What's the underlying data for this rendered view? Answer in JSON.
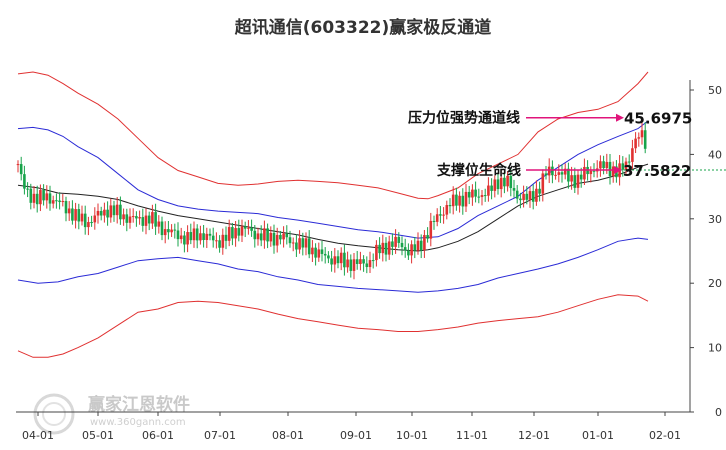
{
  "chart_data": {
    "type": "line",
    "title": "超讯通信(603322)赢家极反通道",
    "ylim": [
      0,
      50
    ],
    "y_ticks": [
      "0",
      "10",
      "20",
      "30",
      "40",
      "50"
    ],
    "x_ticks": [
      "04-01",
      "05-01",
      "06-01",
      "07-01",
      "08-01",
      "09-01",
      "10-01",
      "11-01",
      "12-01",
      "01-01",
      "02-01"
    ],
    "grid": false,
    "legend": "none",
    "annotations": {
      "pressure": {
        "label": "压力位强势通道线",
        "value": "45.6975",
        "y": 45.6975
      },
      "support": {
        "label": "支撑位生命线",
        "value": "37.5822",
        "y": 37.5822
      }
    },
    "series": [
      {
        "role": "outer-upper",
        "color": "#e03131",
        "points": [
          [
            0,
            52.5
          ],
          [
            15,
            52.8
          ],
          [
            30,
            52.3
          ],
          [
            45,
            51.0
          ],
          [
            60,
            49.5
          ],
          [
            80,
            47.8
          ],
          [
            100,
            45.5
          ],
          [
            120,
            42.5
          ],
          [
            140,
            39.5
          ],
          [
            160,
            37.5
          ],
          [
            180,
            36.5
          ],
          [
            200,
            35.5
          ],
          [
            220,
            35.2
          ],
          [
            240,
            35.4
          ],
          [
            260,
            35.8
          ],
          [
            280,
            36.0
          ],
          [
            300,
            35.8
          ],
          [
            320,
            35.6
          ],
          [
            340,
            35.2
          ],
          [
            360,
            34.8
          ],
          [
            380,
            34.0
          ],
          [
            400,
            33.2
          ],
          [
            410,
            33.1
          ],
          [
            420,
            33.6
          ],
          [
            440,
            34.8
          ],
          [
            460,
            37.0
          ],
          [
            480,
            38.5
          ],
          [
            500,
            40.0
          ],
          [
            520,
            43.5
          ],
          [
            540,
            45.5
          ],
          [
            560,
            46.5
          ],
          [
            580,
            47.0
          ],
          [
            600,
            48.2
          ],
          [
            620,
            51.0
          ],
          [
            630,
            52.8
          ]
        ]
      },
      {
        "role": "inner-upper",
        "color": "#2b2bd6",
        "points": [
          [
            0,
            44.0
          ],
          [
            15,
            44.2
          ],
          [
            30,
            43.8
          ],
          [
            45,
            42.8
          ],
          [
            60,
            41.2
          ],
          [
            80,
            39.5
          ],
          [
            100,
            37.0
          ],
          [
            120,
            34.5
          ],
          [
            140,
            33.0
          ],
          [
            160,
            32.0
          ],
          [
            180,
            31.5
          ],
          [
            200,
            31.2
          ],
          [
            220,
            31.0
          ],
          [
            240,
            30.8
          ],
          [
            260,
            30.2
          ],
          [
            280,
            29.8
          ],
          [
            300,
            29.3
          ],
          [
            320,
            28.8
          ],
          [
            340,
            28.3
          ],
          [
            360,
            28.0
          ],
          [
            380,
            27.5
          ],
          [
            400,
            27.0
          ],
          [
            420,
            27.2
          ],
          [
            440,
            28.5
          ],
          [
            460,
            30.5
          ],
          [
            480,
            32.0
          ],
          [
            500,
            33.5
          ],
          [
            520,
            36.0
          ],
          [
            540,
            38.0
          ],
          [
            560,
            40.0
          ],
          [
            580,
            41.5
          ],
          [
            600,
            42.8
          ],
          [
            620,
            44.0
          ],
          [
            630,
            45.2
          ]
        ]
      },
      {
        "role": "midline",
        "color": "#222222",
        "points": [
          [
            0,
            35.2
          ],
          [
            20,
            34.8
          ],
          [
            40,
            34.0
          ],
          [
            60,
            33.8
          ],
          [
            80,
            33.5
          ],
          [
            100,
            33.0
          ],
          [
            120,
            32.0
          ],
          [
            140,
            31.2
          ],
          [
            160,
            30.5
          ],
          [
            180,
            30.0
          ],
          [
            200,
            29.5
          ],
          [
            220,
            29.0
          ],
          [
            240,
            28.5
          ],
          [
            260,
            28.0
          ],
          [
            280,
            27.5
          ],
          [
            300,
            26.8
          ],
          [
            320,
            26.2
          ],
          [
            340,
            25.8
          ],
          [
            360,
            25.5
          ],
          [
            380,
            25.2
          ],
          [
            400,
            25.0
          ],
          [
            410,
            25.2
          ],
          [
            420,
            25.5
          ],
          [
            440,
            26.5
          ],
          [
            460,
            28.0
          ],
          [
            480,
            30.0
          ],
          [
            500,
            32.0
          ],
          [
            520,
            33.5
          ],
          [
            540,
            34.5
          ],
          [
            560,
            35.5
          ],
          [
            580,
            36.0
          ],
          [
            600,
            36.8
          ],
          [
            620,
            38.0
          ],
          [
            630,
            38.5
          ]
        ]
      },
      {
        "role": "inner-lower",
        "color": "#2b2bd6",
        "points": [
          [
            0,
            20.5
          ],
          [
            20,
            20.0
          ],
          [
            40,
            20.2
          ],
          [
            60,
            21.0
          ],
          [
            80,
            21.5
          ],
          [
            100,
            22.5
          ],
          [
            120,
            23.5
          ],
          [
            140,
            23.8
          ],
          [
            160,
            24.0
          ],
          [
            180,
            23.5
          ],
          [
            200,
            23.0
          ],
          [
            220,
            22.2
          ],
          [
            240,
            21.8
          ],
          [
            260,
            21.0
          ],
          [
            280,
            20.5
          ],
          [
            300,
            19.8
          ],
          [
            320,
            19.5
          ],
          [
            340,
            19.2
          ],
          [
            360,
            19.0
          ],
          [
            380,
            18.8
          ],
          [
            400,
            18.6
          ],
          [
            420,
            18.8
          ],
          [
            440,
            19.2
          ],
          [
            460,
            19.8
          ],
          [
            480,
            20.8
          ],
          [
            500,
            21.5
          ],
          [
            520,
            22.2
          ],
          [
            540,
            23.0
          ],
          [
            560,
            24.0
          ],
          [
            580,
            25.2
          ],
          [
            600,
            26.5
          ],
          [
            620,
            27.0
          ],
          [
            630,
            26.8
          ]
        ]
      },
      {
        "role": "outer-lower",
        "color": "#e03131",
        "points": [
          [
            0,
            9.5
          ],
          [
            15,
            8.5
          ],
          [
            30,
            8.5
          ],
          [
            45,
            9.0
          ],
          [
            60,
            10.0
          ],
          [
            80,
            11.5
          ],
          [
            100,
            13.5
          ],
          [
            120,
            15.5
          ],
          [
            140,
            16.0
          ],
          [
            160,
            17.0
          ],
          [
            180,
            17.2
          ],
          [
            200,
            17.0
          ],
          [
            220,
            16.5
          ],
          [
            240,
            16.0
          ],
          [
            260,
            15.2
          ],
          [
            280,
            14.5
          ],
          [
            300,
            14.0
          ],
          [
            320,
            13.5
          ],
          [
            340,
            13.0
          ],
          [
            360,
            12.8
          ],
          [
            380,
            12.5
          ],
          [
            400,
            12.5
          ],
          [
            420,
            12.8
          ],
          [
            440,
            13.2
          ],
          [
            460,
            13.8
          ],
          [
            480,
            14.2
          ],
          [
            500,
            14.5
          ],
          [
            520,
            14.8
          ],
          [
            540,
            15.5
          ],
          [
            560,
            16.5
          ],
          [
            580,
            17.5
          ],
          [
            600,
            18.2
          ],
          [
            620,
            18.0
          ],
          [
            630,
            17.2
          ]
        ]
      },
      {
        "role": "price-close",
        "color": "#17a34a",
        "points": [
          [
            0,
            38.5
          ],
          [
            5,
            35.0
          ],
          [
            10,
            34.0
          ],
          [
            20,
            33.0
          ],
          [
            30,
            33.5
          ],
          [
            40,
            32.5
          ],
          [
            50,
            31.5
          ],
          [
            60,
            30.0
          ],
          [
            70,
            29.5
          ],
          [
            80,
            30.5
          ],
          [
            90,
            31.5
          ],
          [
            100,
            30.8
          ],
          [
            110,
            30.2
          ],
          [
            120,
            29.8
          ],
          [
            130,
            30.2
          ],
          [
            140,
            29.0
          ],
          [
            150,
            28.0
          ],
          [
            160,
            27.5
          ],
          [
            170,
            26.8
          ],
          [
            180,
            27.8
          ],
          [
            190,
            27.0
          ],
          [
            200,
            26.5
          ],
          [
            210,
            27.2
          ],
          [
            220,
            28.5
          ],
          [
            230,
            28.2
          ],
          [
            240,
            27.5
          ],
          [
            250,
            27.0
          ],
          [
            260,
            27.2
          ],
          [
            270,
            26.8
          ],
          [
            280,
            26.0
          ],
          [
            290,
            25.8
          ],
          [
            300,
            24.5
          ],
          [
            310,
            24.0
          ],
          [
            320,
            23.5
          ],
          [
            330,
            23.2
          ],
          [
            340,
            23.0
          ],
          [
            350,
            23.2
          ],
          [
            360,
            25.0
          ],
          [
            370,
            26.0
          ],
          [
            380,
            26.3
          ],
          [
            390,
            25.0
          ],
          [
            400,
            25.5
          ],
          [
            410,
            28.0
          ],
          [
            420,
            30.5
          ],
          [
            430,
            32.0
          ],
          [
            440,
            33.0
          ],
          [
            450,
            33.5
          ],
          [
            460,
            33.8
          ],
          [
            470,
            34.0
          ],
          [
            480,
            36.0
          ],
          [
            490,
            35.5
          ],
          [
            500,
            33.5
          ],
          [
            510,
            33.0
          ],
          [
            520,
            34.5
          ],
          [
            530,
            37.5
          ],
          [
            540,
            37.2
          ],
          [
            550,
            36.5
          ],
          [
            560,
            36.0
          ],
          [
            570,
            37.5
          ],
          [
            580,
            38.0
          ],
          [
            590,
            38.2
          ],
          [
            600,
            37.0
          ],
          [
            610,
            39.0
          ],
          [
            615,
            41.5
          ],
          [
            620,
            42.5
          ],
          [
            625,
            43.0
          ],
          [
            630,
            40.5
          ]
        ]
      }
    ]
  },
  "watermark": {
    "name": "赢家江恩软件",
    "url": "www.360gann.com"
  }
}
